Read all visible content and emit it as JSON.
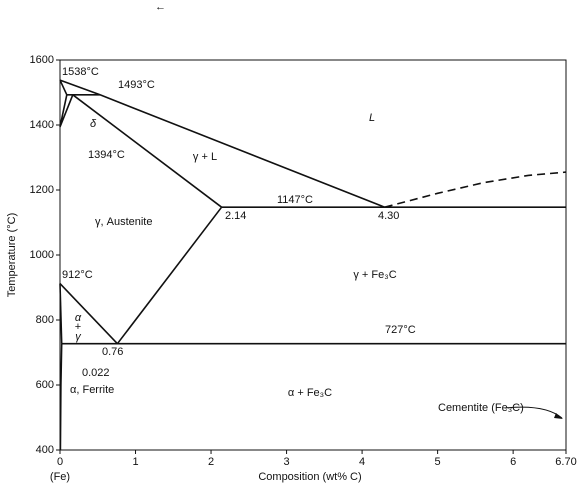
{
  "chart_data": {
    "type": "line",
    "xlabel": "Composition (wt% C)",
    "ylabel": "Temperature (°C)",
    "x_end_label": "(Fe)",
    "xlim": [
      0,
      6.7
    ],
    "ylim": [
      400,
      1600
    ],
    "xticks": [
      0,
      1,
      2,
      3,
      4,
      5,
      6,
      {
        "value": 6.7,
        "label": "6.70"
      }
    ],
    "yticks": [
      400,
      600,
      800,
      1000,
      1200,
      1400,
      1600
    ],
    "color": "#111111",
    "series": [
      {
        "x": [
          0,
          0.53,
          4.3
        ],
        "values": [
          1538,
          1493,
          1147
        ]
      },
      {
        "x": [
          4.3,
          5.0,
          5.6,
          6.2,
          6.7
        ],
        "values": [
          1147,
          1190,
          1222,
          1245,
          1255
        ],
        "dashed": true
      },
      {
        "x": [
          0.17,
          2.14
        ],
        "values": [
          1493,
          1147
        ]
      },
      {
        "x": [
          0.09,
          0.53
        ],
        "values": [
          1493,
          1493
        ]
      },
      {
        "x": [
          0,
          0.09,
          0,
          0.17
        ],
        "values": [
          1538,
          1493,
          1394,
          1493
        ]
      },
      {
        "x": [
          2.14,
          6.7
        ],
        "values": [
          1147,
          1147
        ]
      },
      {
        "x": [
          0,
          0.76
        ],
        "values": [
          912,
          727
        ]
      },
      {
        "x": [
          0.76,
          2.14
        ],
        "values": [
          727,
          1147
        ]
      },
      {
        "x": [
          0.022,
          6.7
        ],
        "values": [
          727,
          727
        ]
      },
      {
        "x": [
          0,
          0.022
        ],
        "values": [
          912,
          727
        ]
      },
      {
        "x": [
          0.022,
          0.012,
          0.005
        ],
        "values": [
          727,
          600,
          400
        ]
      }
    ],
    "annotations": [
      "1538°C",
      "1493°C",
      "1394°C",
      "δ",
      "γ + L",
      "L",
      "γ, Austenite",
      "1147°C",
      "2.14",
      "4.30",
      "γ + Fe₃C",
      "912°C",
      "α",
      "+",
      "γ",
      "727°C",
      "0.76",
      "0.022",
      "α, Ferrite",
      "α + Fe₃C",
      "Cementite (Fe₃C)"
    ]
  }
}
